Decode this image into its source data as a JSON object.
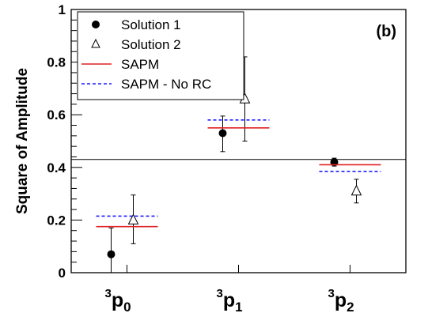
{
  "chart_data": {
    "type": "scatter",
    "ylabel": "Square of Amplitude",
    "ylim": [
      0,
      1
    ],
    "yticks": [
      "0",
      "0.2",
      "0.4",
      "0.6",
      "0.8",
      "1"
    ],
    "panel_label": "(b)",
    "categories": [
      {
        "sup": "3",
        "base": "p",
        "sub": "0"
      },
      {
        "sup": "3",
        "base": "p",
        "sub": "1"
      },
      {
        "sup": "3",
        "base": "p",
        "sub": "2"
      }
    ],
    "reference_line": 0.43,
    "series": [
      {
        "name": "Solution 1",
        "marker": "filled-circle",
        "values": [
          0.07,
          0.53,
          0.42
        ],
        "err_low": [
          0.07,
          0.07,
          0.015
        ],
        "err_high": [
          0.1,
          0.065,
          0.015
        ]
      },
      {
        "name": "Solution 2",
        "marker": "open-triangle",
        "values": [
          0.2,
          0.66,
          0.31
        ],
        "err_low": [
          0.09,
          0.16,
          0.045
        ],
        "err_high": [
          0.095,
          0.16,
          0.045
        ]
      },
      {
        "name": "SAPM",
        "line": "solid",
        "color": "#e02020",
        "values": [
          0.175,
          0.55,
          0.41
        ]
      },
      {
        "name": "SAPM - No RC",
        "line": "dashed",
        "color": "#1a1aff",
        "values": [
          0.215,
          0.58,
          0.385
        ]
      }
    ],
    "legend": {
      "position": "top-left"
    },
    "grid": false
  }
}
